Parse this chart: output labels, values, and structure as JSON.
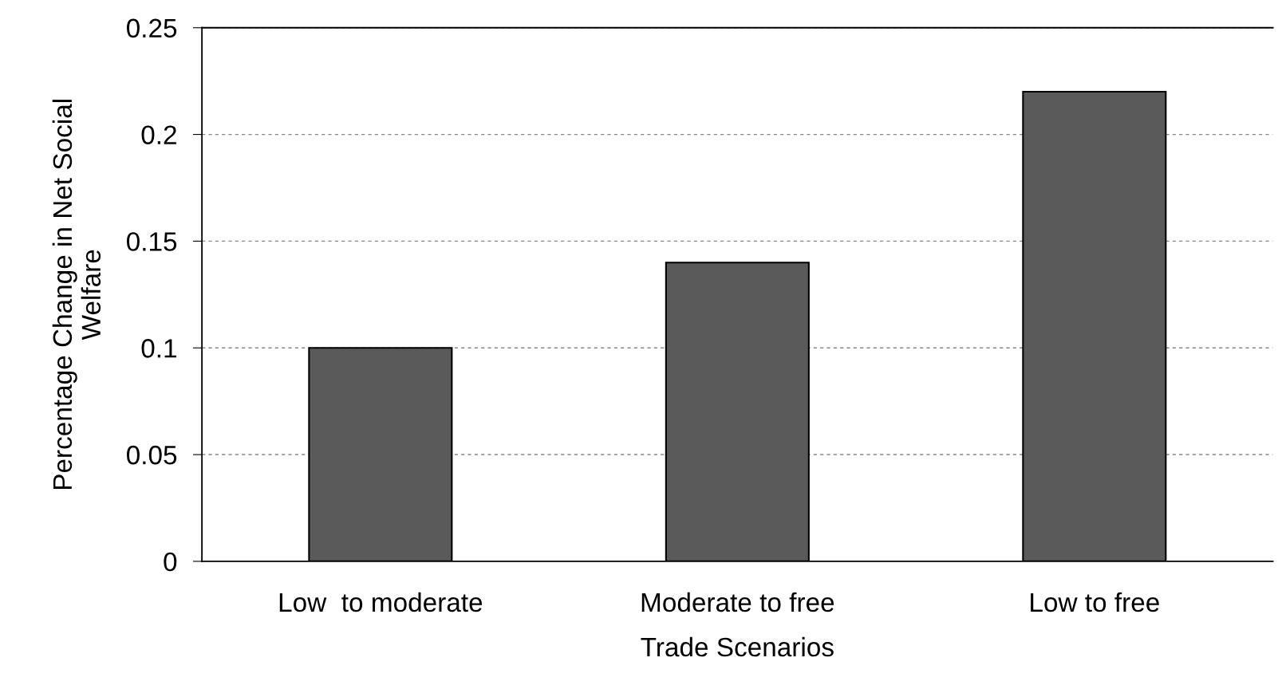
{
  "chart_data": {
    "type": "bar",
    "xlabel": "Trade Scenarios",
    "ylabel": "Percentage Change in Net Social\nWelfare",
    "categories": [
      "Low  to moderate",
      "Moderate to free",
      "Low to free"
    ],
    "values": [
      0.1,
      0.14,
      0.22
    ],
    "color": "#5a5a5a",
    "ylim": [
      0,
      0.25
    ],
    "yticks": [
      0,
      0.05,
      0.1,
      0.15,
      0.2,
      0.25
    ],
    "grid": "y",
    "legend": false
  }
}
